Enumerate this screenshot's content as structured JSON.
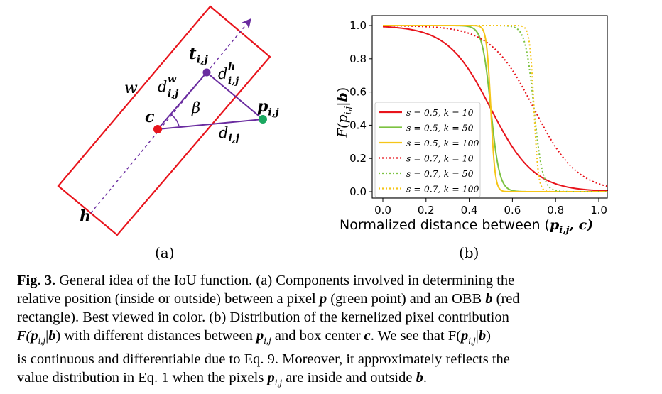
{
  "panel_a": {
    "sub_label": "(a)",
    "labels": {
      "w": "w",
      "h": "h",
      "t": "t",
      "t_sub": "i,j",
      "dw": "d",
      "dw_sup": "w",
      "dw_sub": "i,j",
      "dh": "d",
      "dh_sup": "h",
      "dh_sub": "i,j",
      "beta": "β",
      "c": "c",
      "p": "p",
      "p_sub": "i,j",
      "d": "d",
      "d_sub": "i,j"
    },
    "colors": {
      "box": "#e8141c",
      "triangle": "#6a2ca0",
      "center": "#e8141c",
      "pixel": "#1aa860"
    }
  },
  "panel_b": {
    "sub_label": "(b)",
    "ylabel": "F(p",
    "ylabel_sub": "i,j",
    "ylabel_mid": "|",
    "ylabel_b": "b",
    "ylabel_end": ")",
    "xlabel": "Normalized distance between (",
    "xlabel_p": "p",
    "xlabel_sub": "i,j",
    "xlabel_c": ", c)",
    "xticks": [
      "0.0",
      "0.2",
      "0.4",
      "0.6",
      "0.8",
      "1.0"
    ],
    "yticks": [
      "0.0",
      "0.2",
      "0.4",
      "0.6",
      "0.8",
      "1.0"
    ]
  },
  "chart_data": {
    "type": "line",
    "xlim": [
      0,
      1
    ],
    "ylim": [
      0,
      1
    ],
    "grid": false,
    "legend_position": "lower-left",
    "series": [
      {
        "name": "s = 0.5, k = 10",
        "s": 0.5,
        "k": 10,
        "color": "#e8141c",
        "style": "solid"
      },
      {
        "name": "s = 0.5, k = 50",
        "s": 0.5,
        "k": 50,
        "color": "#7cc241",
        "style": "solid"
      },
      {
        "name": "s = 0.5, k = 100",
        "s": 0.5,
        "k": 100,
        "color": "#f5c518",
        "style": "solid"
      },
      {
        "name": "s = 0.7, k = 10",
        "s": 0.7,
        "k": 10,
        "color": "#e8141c",
        "style": "dotted"
      },
      {
        "name": "s = 0.7, k = 50",
        "s": 0.7,
        "k": 50,
        "color": "#7cc241",
        "style": "dotted"
      },
      {
        "name": "s = 0.7, k = 100",
        "s": 0.7,
        "k": 100,
        "color": "#f5c518",
        "style": "dotted"
      }
    ]
  },
  "caption": {
    "fig_label": "Fig. 3.",
    "l1": " General idea of the IoU function. (a) Components involved in determining the",
    "l2a": "relative position (inside or outside) between a pixel ",
    "l2_p": "p",
    "l2b": " (green point) and an OBB ",
    "l2_b": "b",
    "l2c": " (red",
    "l3": "rectangle). Best viewed in color. (b) Distribution of the kernelized pixel contribution",
    "l4a": "F(",
    "l4_p": "p",
    "l4_sub": "i,j",
    "l4_bar": "|",
    "l4_b": "b",
    "l4b": ") with different distances between ",
    "l4_p2": "p",
    "l4_sub2": "i,j",
    "l4c": " and box center ",
    "l4_c": "c",
    "l4d": ". We see that F(",
    "l4_p3": "p",
    "l4_sub3": "i,j",
    "l4_bar2": "|",
    "l4_b2": "b",
    "l4e": ")",
    "l5": "is continuous and differentiable due to Eq. 9. Moreover, it approximately reflects the",
    "l6a": "value distribution in Eq. 1 when the pixels ",
    "l6_p": "p",
    "l6_sub": "i,j",
    "l6b": " are inside and outside ",
    "l6_b": "b",
    "l6c": "."
  }
}
